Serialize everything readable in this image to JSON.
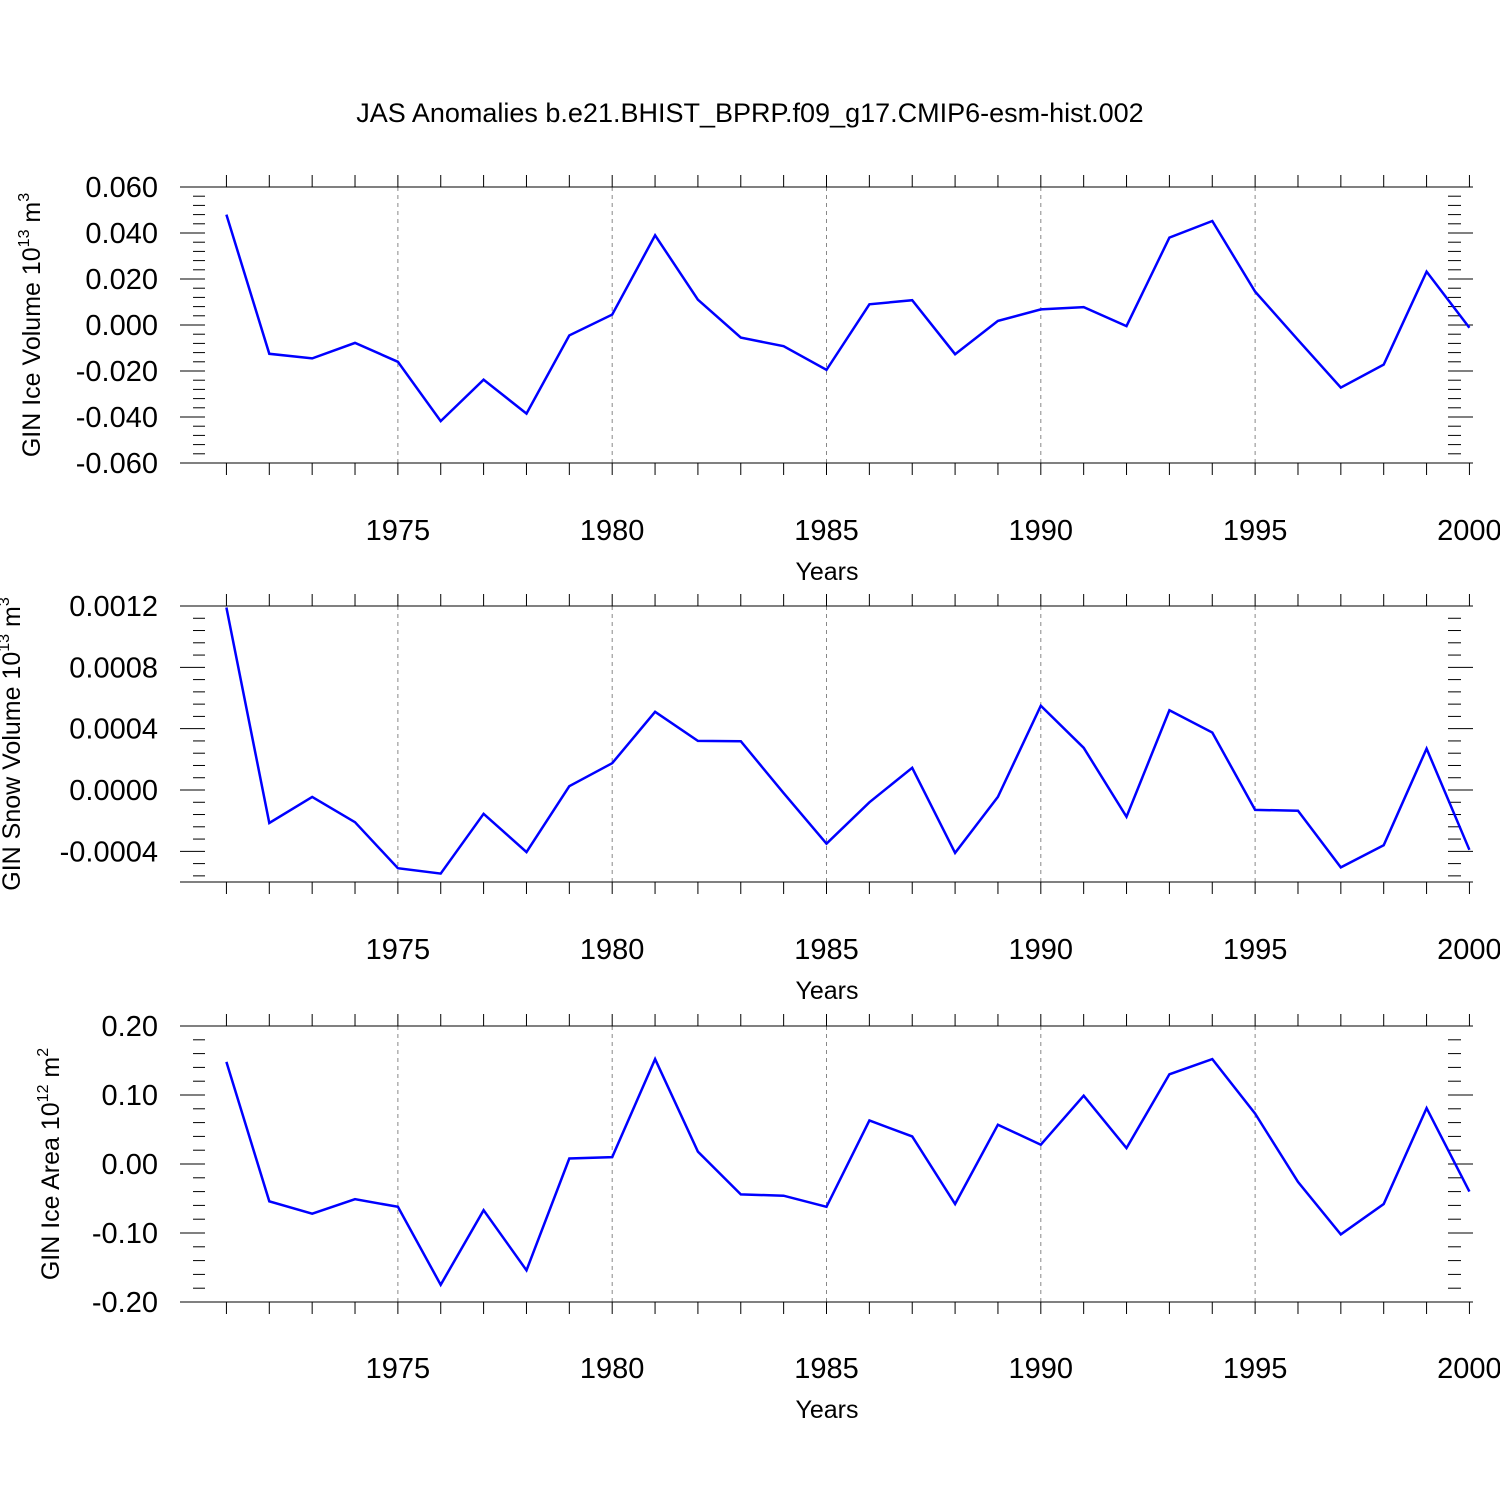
{
  "title": "JAS Anomalies b.e21.BHIST_BPRP.f09_g17.CMIP6-esm-hist.002",
  "colors": {
    "series": "#0000ff",
    "axis": "#000000",
    "grid": "#888888"
  },
  "chart_data": [
    {
      "type": "line",
      "ylabel": {
        "text": "GIN Ice Volume 10",
        "sup": "13",
        "unit": " m",
        "unit_sup": "3"
      },
      "xlabel": "Years",
      "xlim": [
        1970.5,
        1999.5
      ],
      "ylim": [
        -0.06,
        0.06
      ],
      "xticks": [
        1975,
        1980,
        1985,
        1990,
        1995,
        2000
      ],
      "xtick_labels": [
        "1975",
        "1980",
        "1985",
        "1990",
        "1995",
        "2000"
      ],
      "yticks": [
        -0.06,
        -0.04,
        -0.02,
        0.0,
        0.02,
        0.04,
        0.06
      ],
      "ytick_labels": [
        "-0.060",
        "-0.040",
        "-0.020",
        "0.000",
        "0.020",
        "0.040",
        "0.060"
      ],
      "x": [
        1971,
        1972,
        1973,
        1974,
        1975,
        1976,
        1977,
        1978,
        1979,
        1980,
        1981,
        1982,
        1983,
        1984,
        1985,
        1986,
        1987,
        1988,
        1989,
        1990,
        1991,
        1992,
        1993,
        1994,
        1995,
        1996,
        1997,
        1998,
        1999,
        2000
      ],
      "series": [
        {
          "name": "GIN Ice Volume",
          "values": [
            0.048,
            -0.0125,
            -0.0145,
            -0.0078,
            -0.016,
            -0.0418,
            -0.0238,
            -0.0385,
            -0.0045,
            0.0045,
            0.039,
            0.011,
            -0.0055,
            -0.0092,
            -0.0195,
            0.009,
            0.0108,
            -0.0127,
            0.0018,
            0.0068,
            0.0078,
            -0.0005,
            0.038,
            0.0452,
            0.0145,
            -0.0065,
            -0.0272,
            -0.0172,
            0.0232,
            -0.0012
          ]
        }
      ]
    },
    {
      "type": "line",
      "ylabel": {
        "text": "GIN Snow Volume 10",
        "sup": "13",
        "unit": " m",
        "unit_sup": "3"
      },
      "xlabel": "Years",
      "xlim": [
        1970.5,
        1999.5
      ],
      "ylim": [
        -0.0006,
        0.0012
      ],
      "xticks": [
        1975,
        1980,
        1985,
        1990,
        1995,
        2000
      ],
      "xtick_labels": [
        "1975",
        "1980",
        "1985",
        "1990",
        "1995",
        "2000"
      ],
      "yticks": [
        -0.0004,
        0.0,
        0.0004,
        0.0008,
        0.0012
      ],
      "ytick_labels": [
        "-0.0004",
        "0.0000",
        "0.0004",
        "0.0008",
        "0.0012"
      ],
      "x": [
        1971,
        1972,
        1973,
        1974,
        1975,
        1976,
        1977,
        1978,
        1979,
        1980,
        1981,
        1982,
        1983,
        1984,
        1985,
        1986,
        1987,
        1988,
        1989,
        1990,
        1991,
        1992,
        1993,
        1994,
        1995,
        1996,
        1997,
        1998,
        1999,
        2000
      ],
      "series": [
        {
          "name": "GIN Snow Volume",
          "values": [
            0.00119,
            -0.000215,
            -4.5e-05,
            -0.00021,
            -0.00051,
            -0.000545,
            -0.000155,
            -0.000405,
            2.5e-05,
            0.000175,
            0.00051,
            0.00032,
            0.000318,
            -2e-05,
            -0.00035,
            -8e-05,
            0.000145,
            -0.00041,
            -4.5e-05,
            0.00055,
            0.000275,
            -0.000175,
            0.00052,
            0.000375,
            -0.00013,
            -0.000135,
            -0.000505,
            -0.00036,
            0.00027,
            -0.00039
          ]
        }
      ]
    },
    {
      "type": "line",
      "ylabel": {
        "text": "GIN Ice Area 10",
        "sup": "12",
        "unit": " m",
        "unit_sup": "2"
      },
      "xlabel": "Years",
      "xlim": [
        1970.5,
        1999.5
      ],
      "ylim": [
        -0.2,
        0.2
      ],
      "xticks": [
        1975,
        1980,
        1985,
        1990,
        1995,
        2000
      ],
      "xtick_labels": [
        "1975",
        "1980",
        "1985",
        "1990",
        "1995",
        "2000"
      ],
      "yticks": [
        -0.2,
        -0.1,
        0.0,
        0.1,
        0.2
      ],
      "ytick_labels": [
        "-0.20",
        "-0.10",
        "0.00",
        "0.10",
        "0.20"
      ],
      "x": [
        1971,
        1972,
        1973,
        1974,
        1975,
        1976,
        1977,
        1978,
        1979,
        1980,
        1981,
        1982,
        1983,
        1984,
        1985,
        1986,
        1987,
        1988,
        1989,
        1990,
        1991,
        1992,
        1993,
        1994,
        1995,
        1996,
        1997,
        1998,
        1999,
        2000
      ],
      "series": [
        {
          "name": "GIN Ice Area",
          "values": [
            0.148,
            -0.054,
            -0.072,
            -0.051,
            -0.062,
            -0.175,
            -0.067,
            -0.154,
            0.008,
            0.01,
            0.152,
            0.018,
            -0.044,
            -0.046,
            -0.062,
            0.063,
            0.04,
            -0.058,
            0.057,
            0.028,
            0.099,
            0.023,
            0.13,
            0.152,
            0.073,
            -0.026,
            -0.102,
            -0.058,
            0.081,
            -0.04
          ]
        }
      ]
    }
  ]
}
